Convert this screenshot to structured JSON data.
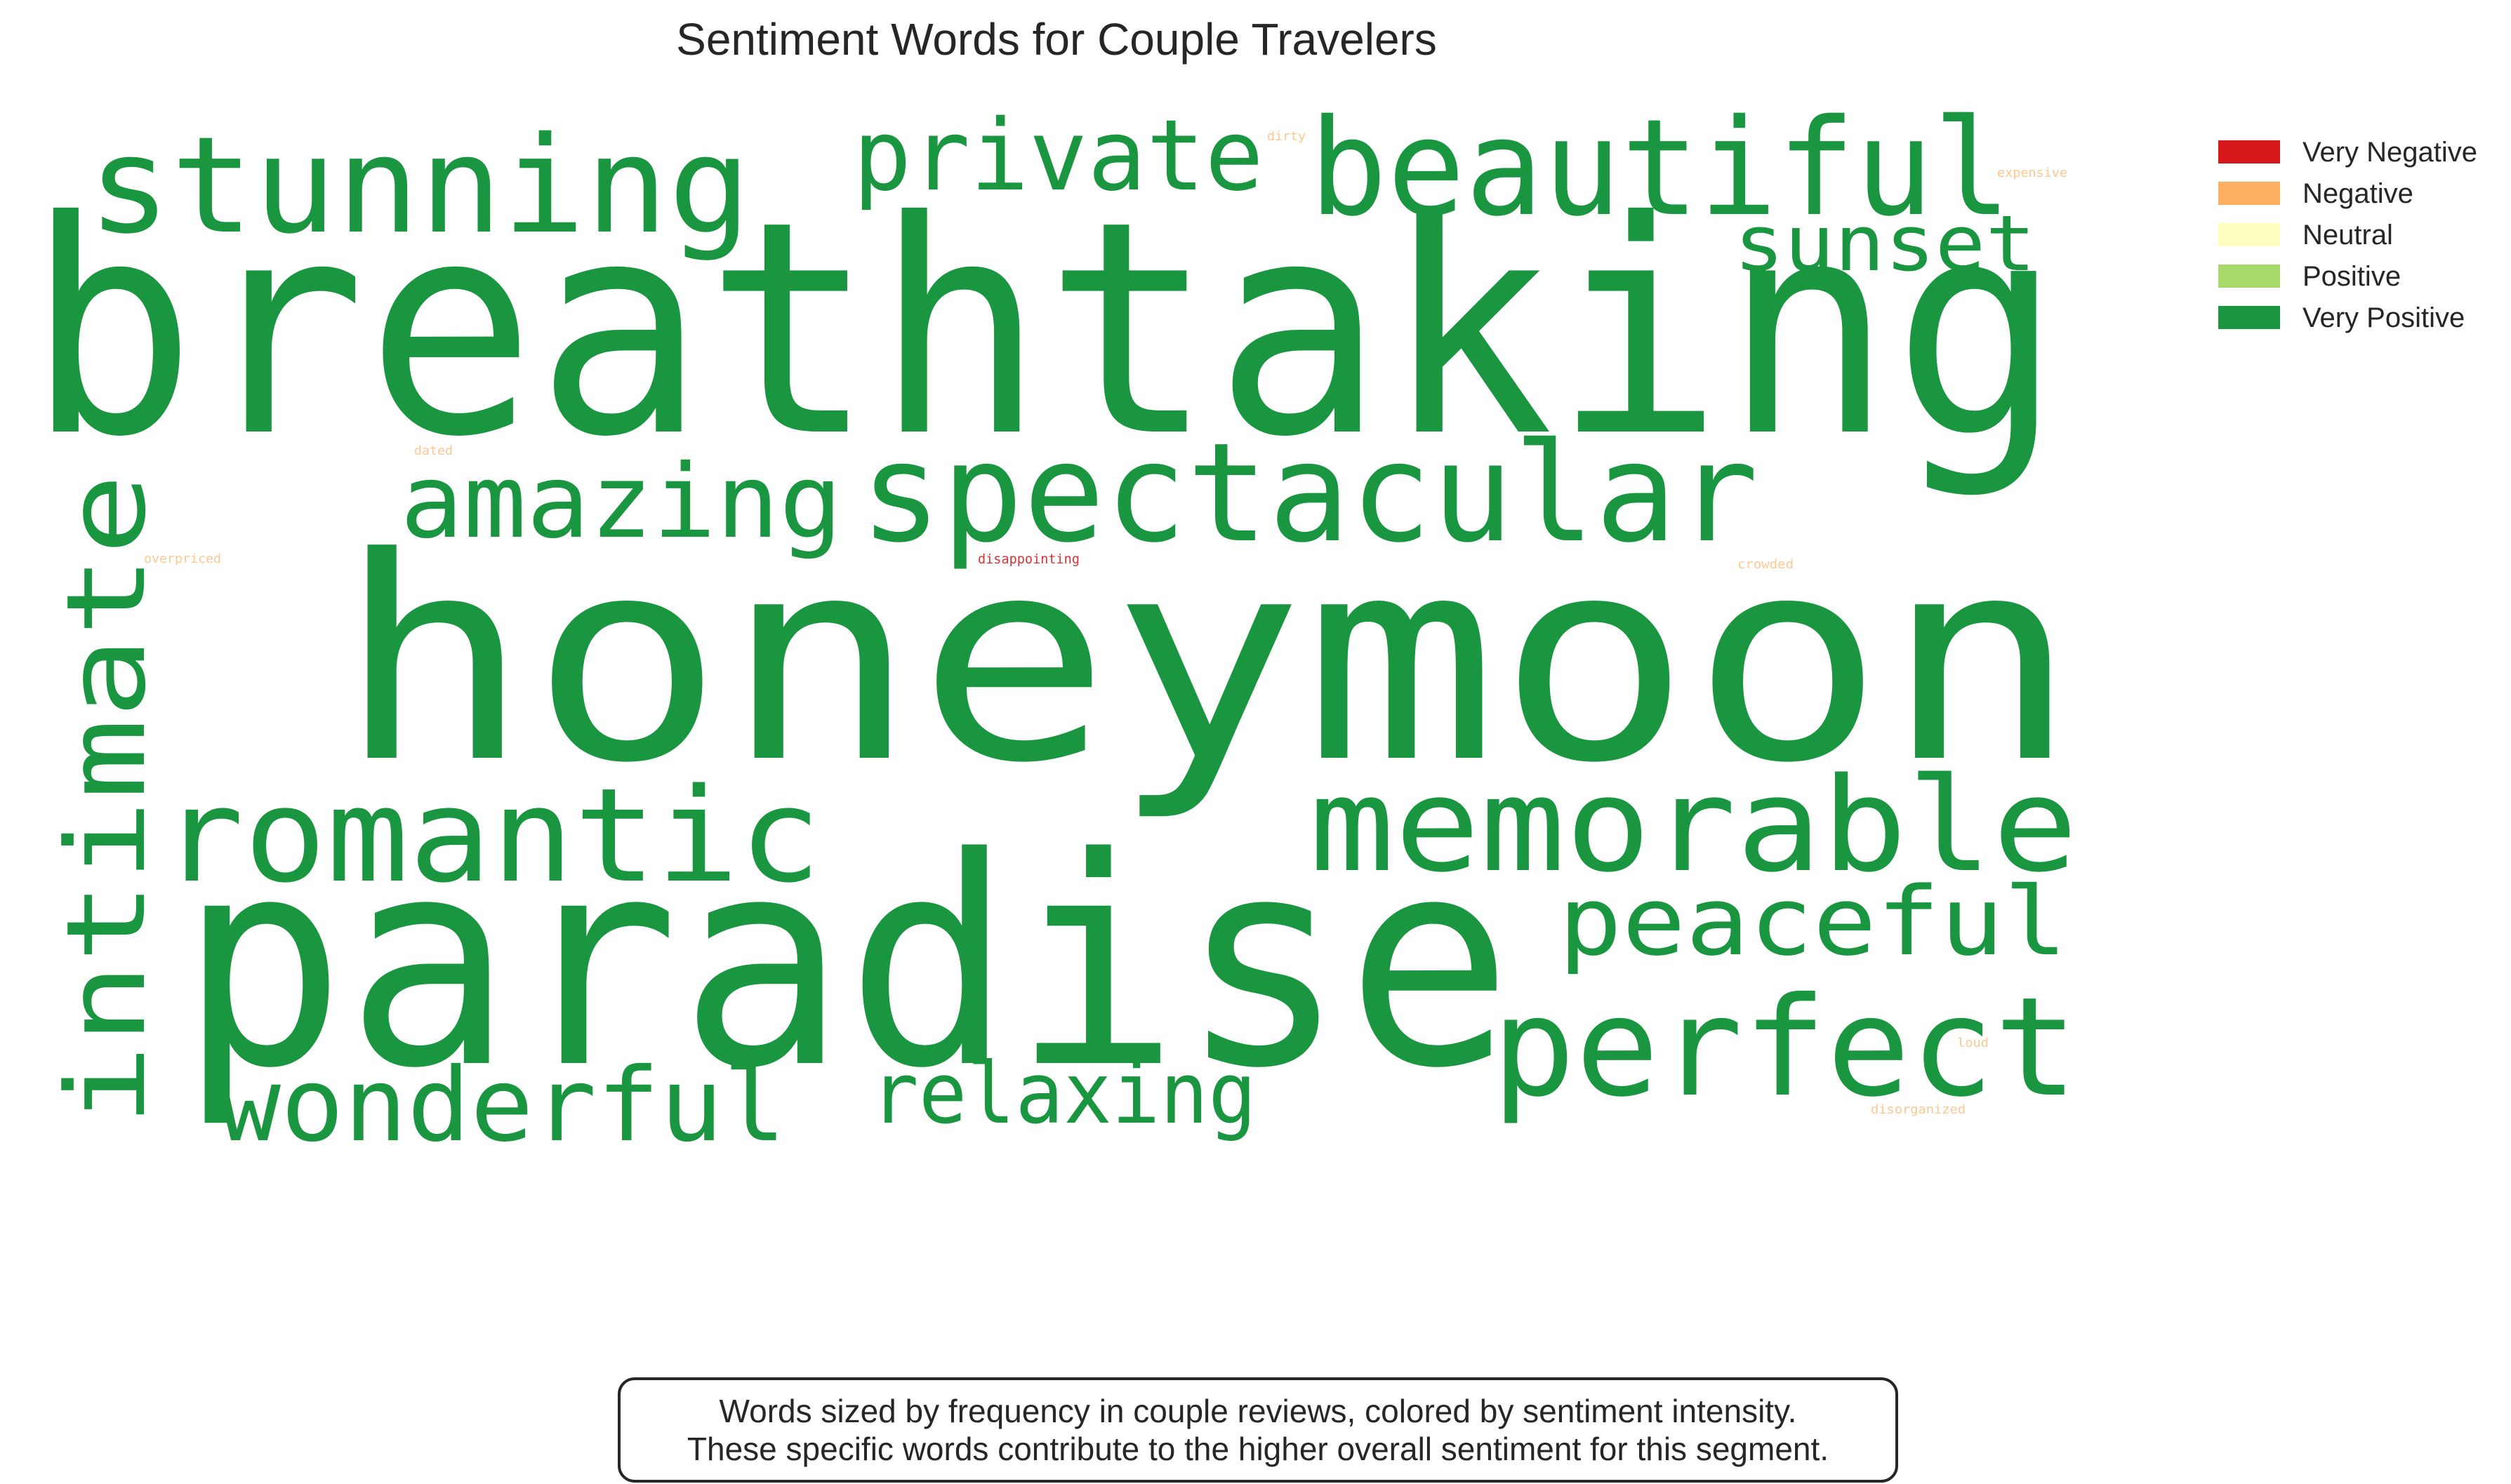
{
  "chart_data": {
    "type": "wordcloud",
    "title": "Sentiment Words for Couple Travelers",
    "legend": {
      "placement": "top-right",
      "entries": [
        {
          "label": "Very Negative",
          "color": "#d7191c"
        },
        {
          "label": "Negative",
          "color": "#fdae61"
        },
        {
          "label": "Neutral",
          "color": "#ffffbf"
        },
        {
          "label": "Positive",
          "color": "#a6d96a"
        },
        {
          "label": "Very Positive",
          "color": "#1a9641"
        }
      ]
    },
    "words": [
      {
        "text": "breathtaking",
        "sentiment": "Very Positive"
      },
      {
        "text": "honeymoon",
        "sentiment": "Very Positive"
      },
      {
        "text": "paradise",
        "sentiment": "Very Positive"
      },
      {
        "text": "stunning",
        "sentiment": "Very Positive"
      },
      {
        "text": "beautiful",
        "sentiment": "Very Positive"
      },
      {
        "text": "private",
        "sentiment": "Very Positive"
      },
      {
        "text": "sunset",
        "sentiment": "Very Positive"
      },
      {
        "text": "spectacular",
        "sentiment": "Very Positive"
      },
      {
        "text": "amazing",
        "sentiment": "Very Positive"
      },
      {
        "text": "intimate",
        "sentiment": "Very Positive"
      },
      {
        "text": "romantic",
        "sentiment": "Very Positive"
      },
      {
        "text": "memorable",
        "sentiment": "Very Positive"
      },
      {
        "text": "peaceful",
        "sentiment": "Very Positive"
      },
      {
        "text": "perfect",
        "sentiment": "Very Positive"
      },
      {
        "text": "wonderful",
        "sentiment": "Very Positive"
      },
      {
        "text": "relaxing",
        "sentiment": "Very Positive"
      },
      {
        "text": "dirty",
        "sentiment": "Negative"
      },
      {
        "text": "expensive",
        "sentiment": "Negative"
      },
      {
        "text": "dated",
        "sentiment": "Negative"
      },
      {
        "text": "overpriced",
        "sentiment": "Negative"
      },
      {
        "text": "disappointing",
        "sentiment": "Very Negative"
      },
      {
        "text": "crowded",
        "sentiment": "Negative"
      },
      {
        "text": "loud",
        "sentiment": "Negative"
      },
      {
        "text": "disorganized",
        "sentiment": "Negative"
      }
    ]
  },
  "caption": {
    "line1": "Words sized by frequency in couple reviews, colored by sentiment intensity.",
    "line2": "These specific words contribute to the higher overall sentiment for this segment."
  }
}
